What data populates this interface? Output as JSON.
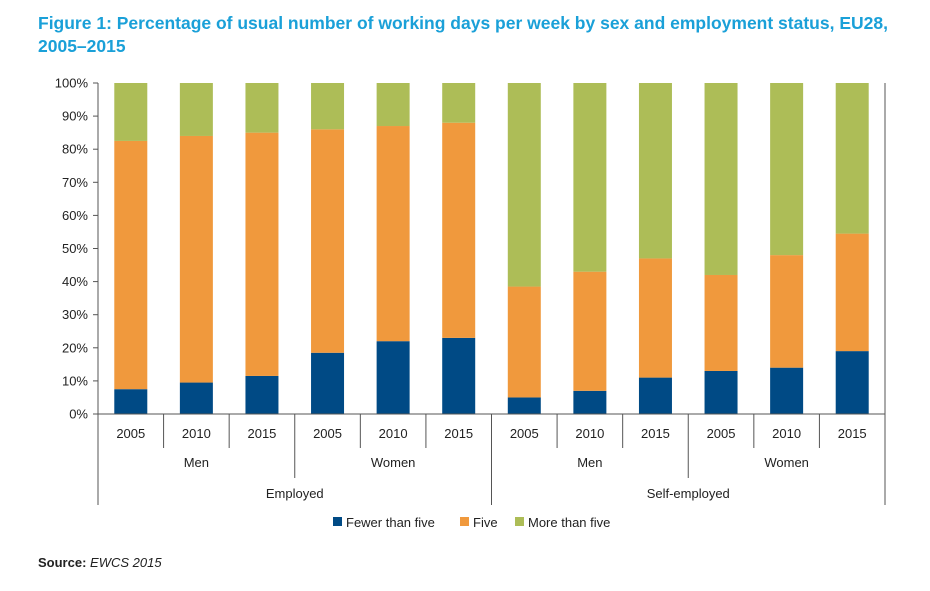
{
  "title": "Figure 1: Percentage of usual number of working days per week by sex and employment status, EU28, 2005–2015",
  "source": {
    "label": "Source:",
    "value": "EWCS 2015"
  },
  "colors": {
    "fewer": "#004a85",
    "five": "#f0993d",
    "more": "#adbd57",
    "axis": "#555555",
    "grid": "#999999"
  },
  "chart_data": {
    "type": "bar",
    "stacked": true,
    "y_tick_labels": [
      "0%",
      "10%",
      "20%",
      "30%",
      "40%",
      "50%",
      "60%",
      "70%",
      "80%",
      "90%",
      "100%"
    ],
    "ylim": [
      0,
      100
    ],
    "categories": [
      "2005",
      "2010",
      "2015",
      "2005",
      "2010",
      "2015",
      "2005",
      "2010",
      "2015",
      "2005",
      "2010",
      "2015"
    ],
    "sex_groups": [
      "Men",
      "Women",
      "Men",
      "Women"
    ],
    "status_groups": [
      "Employed",
      "Self-employed"
    ],
    "series": [
      {
        "name": "Fewer than five",
        "color": "#004a85",
        "values": [
          7.5,
          9.5,
          11.5,
          18.5,
          22,
          23,
          5,
          7,
          11,
          13,
          14,
          19
        ]
      },
      {
        "name": "Five",
        "color": "#f0993d",
        "values": [
          75,
          74.5,
          73.5,
          67.5,
          65,
          65,
          33.5,
          36,
          36,
          29,
          34,
          35.5
        ]
      },
      {
        "name": "More than five",
        "color": "#adbd57",
        "values": [
          17.5,
          16,
          15,
          14,
          13,
          12,
          61.5,
          57,
          53,
          58,
          52,
          45.5
        ]
      }
    ],
    "legend_position": "bottom",
    "grid": false
  }
}
